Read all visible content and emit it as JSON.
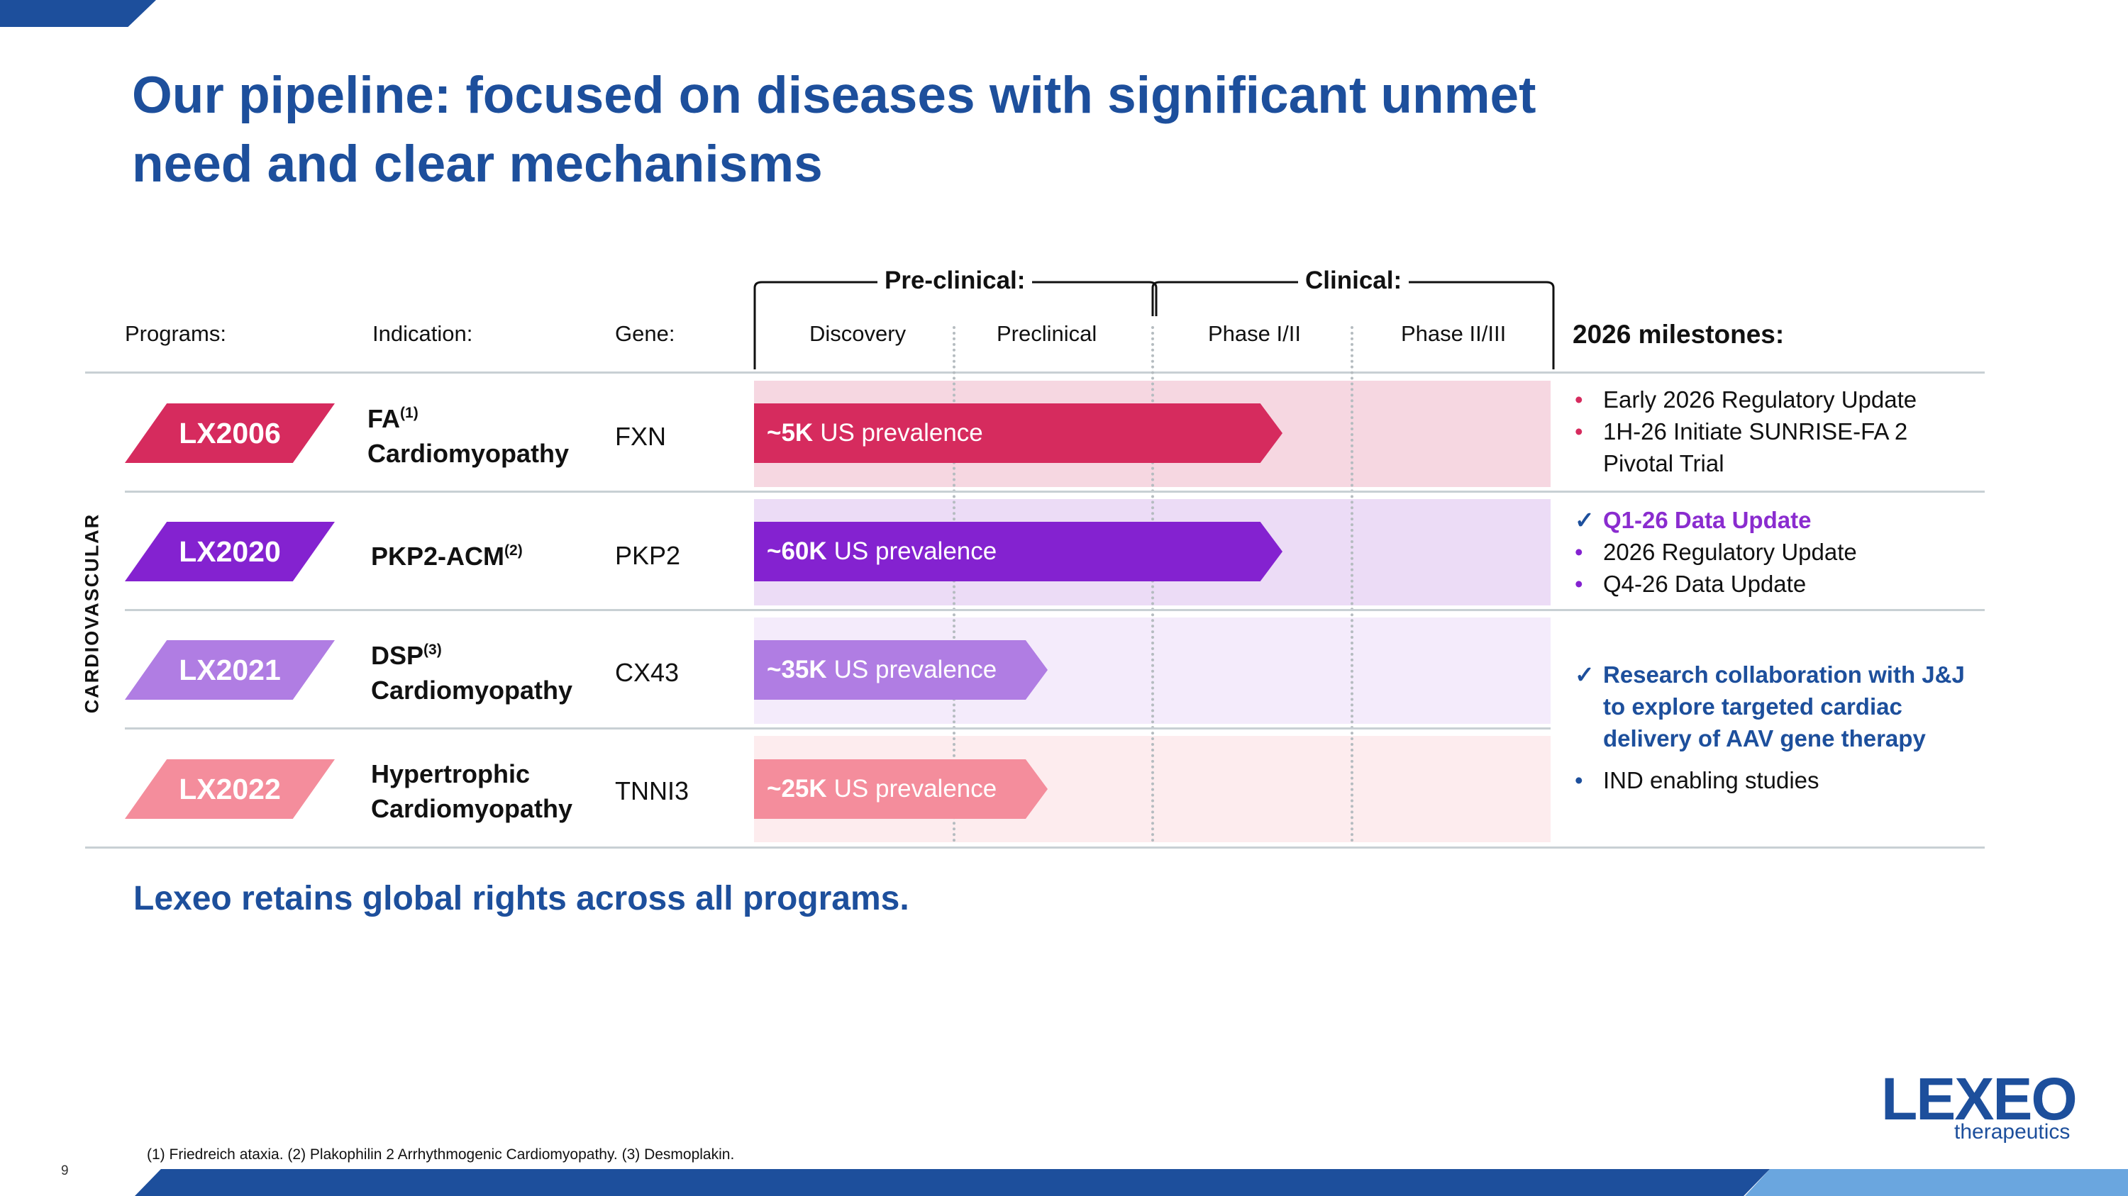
{
  "slide": {
    "title_line1": "Our pipeline: focused on diseases with significant unmet",
    "title_line2": "need and clear mechanisms",
    "page_number": "9",
    "tagline": "Lexeo retains global rights across all programs.",
    "footnote": "(1) Friedreich ataxia. (2) Plakophilin 2 Arrhythmogenic Cardiomyopathy.  (3) Desmoplakin.",
    "therapeutic_area": "CARDIOVASCULAR"
  },
  "columns": {
    "programs": "Programs:",
    "indication": "Indication:",
    "gene": "Gene:",
    "preclinical_group": "Pre-clinical:",
    "clinical_group": "Clinical:",
    "discovery": "Discovery",
    "preclinical": "Preclinical",
    "phase_1_2": "Phase I/II",
    "phase_2_3": "Phase II/III",
    "milestones": "2026 milestones:"
  },
  "programs": [
    {
      "name": "LX2006",
      "indication_line1": "FA",
      "indication_sup": "(1)",
      "indication_line2": "Cardiomyopathy",
      "gene": "FXN",
      "prevalence_value": "~5K",
      "prevalence_text": "US prevalence",
      "stage": "Phase I/II",
      "color": "#d62b5e",
      "track_color": "#f6d7e1"
    },
    {
      "name": "LX2020",
      "indication_line1": "PKP2-ACM",
      "indication_sup": "(2)",
      "gene": "PKP2",
      "prevalence_value": "~60K",
      "prevalence_text": "US prevalence",
      "stage": "Phase I/II",
      "color": "#8422d0",
      "track_color": "#ecdcf6"
    },
    {
      "name": "LX2021",
      "indication_line1": "DSP",
      "indication_sup": "(3)",
      "indication_line2": "Cardiomyopathy",
      "gene": "CX43",
      "prevalence_value": "~35K",
      "prevalence_text": "US prevalence",
      "stage": "Preclinical",
      "color": "#b07de3",
      "track_color": "#f4ebfb"
    },
    {
      "name": "LX2022",
      "indication_line1": "Hypertrophic",
      "indication_line2": "Cardiomyopathy",
      "gene": "TNNI3",
      "prevalence_value": "~25K",
      "prevalence_text": "US prevalence",
      "stage": "Preclinical",
      "color": "#f48d9c",
      "track_color": "#fdecee"
    }
  ],
  "milestones": {
    "lx2006": [
      {
        "text": "Early 2026 Regulatory Update",
        "marker": "•",
        "style": "normal"
      },
      {
        "text": "1H-26 Initiate SUNRISE-FA 2 Pivotal Trial",
        "marker": "•",
        "style": "normal"
      }
    ],
    "lx2020": [
      {
        "text": "Q1-26 Data Update",
        "marker": "✓",
        "style": "done-purple"
      },
      {
        "text": "2026 Regulatory Update",
        "marker": "•",
        "style": "normal"
      },
      {
        "text": "Q4-26 Data Update",
        "marker": "•",
        "style": "normal"
      }
    ],
    "lx2021_2022": [
      {
        "text": "Research collaboration with J&J to explore targeted cardiac delivery of AAV gene therapy",
        "marker": "✓",
        "style": "done-blue"
      },
      {
        "text": "IND enabling studies",
        "marker": "•",
        "style": "normal-blue-bullet"
      }
    ]
  },
  "logo": {
    "wordmark": "LEXEO",
    "subtext": "therapeutics"
  },
  "colors": {
    "brand_blue": "#1d4f9c",
    "light_blue": "#6aa6df",
    "milestone_purple": "#8a2ccf",
    "bullet_pink": "#d62b5e",
    "bullet_purple": "#8422d0"
  }
}
